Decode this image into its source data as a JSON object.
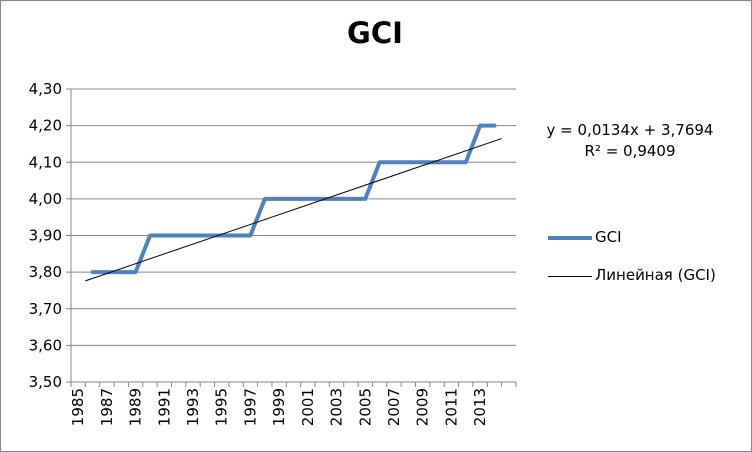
{
  "chart_data": {
    "type": "line",
    "title": "GCI",
    "categories": [
      "1985",
      "1986",
      "1987",
      "1988",
      "1989",
      "1990",
      "1991",
      "1992",
      "1993",
      "1994",
      "1995",
      "1996",
      "1997",
      "1998",
      "1999",
      "2000",
      "2001",
      "2002",
      "2003",
      "2004",
      "2005",
      "2006",
      "2007",
      "2008",
      "2009",
      "2010",
      "2011",
      "2012",
      "2013",
      "2014",
      "2015"
    ],
    "x_tick_labels": [
      "1985",
      "1987",
      "1989",
      "1991",
      "1993",
      "1995",
      "1997",
      "1999",
      "2001",
      "2003",
      "2005",
      "2007",
      "2009",
      "2011",
      "2013"
    ],
    "series": [
      {
        "name": "GCI",
        "color": "#4f81bd",
        "x": [
          "1986",
          "1987",
          "1988",
          "1989",
          "1990",
          "1991",
          "1992",
          "1993",
          "1994",
          "1995",
          "1996",
          "1997",
          "1998",
          "1999",
          "2000",
          "2001",
          "2002",
          "2003",
          "2004",
          "2005",
          "2006",
          "2007",
          "2008",
          "2009",
          "2010",
          "2011",
          "2012",
          "2013",
          "2014"
        ],
        "values": [
          3.8,
          3.8,
          3.8,
          3.8,
          3.9,
          3.9,
          3.9,
          3.9,
          3.9,
          3.9,
          3.9,
          3.9,
          4.0,
          4.0,
          4.0,
          4.0,
          4.0,
          4.0,
          4.0,
          4.0,
          4.1,
          4.1,
          4.1,
          4.1,
          4.1,
          4.1,
          4.1,
          4.2,
          4.2
        ]
      }
    ],
    "trendline": {
      "name": "Линейная (GCI)",
      "type": "linear",
      "slope": 0.0134,
      "intercept": 3.7694,
      "color": "#000000",
      "equation": "y = 0,0134x + 3,7694",
      "r_squared": "R² = 0,9409"
    },
    "ylim": [
      3.5,
      4.3
    ],
    "y_ticks": [
      "3,50",
      "3,60",
      "3,70",
      "3,80",
      "3,90",
      "4,00",
      "4,10",
      "4,20",
      "4,30"
    ],
    "grid": "horizontal",
    "legend": "right",
    "xlabel": "",
    "ylabel": ""
  }
}
